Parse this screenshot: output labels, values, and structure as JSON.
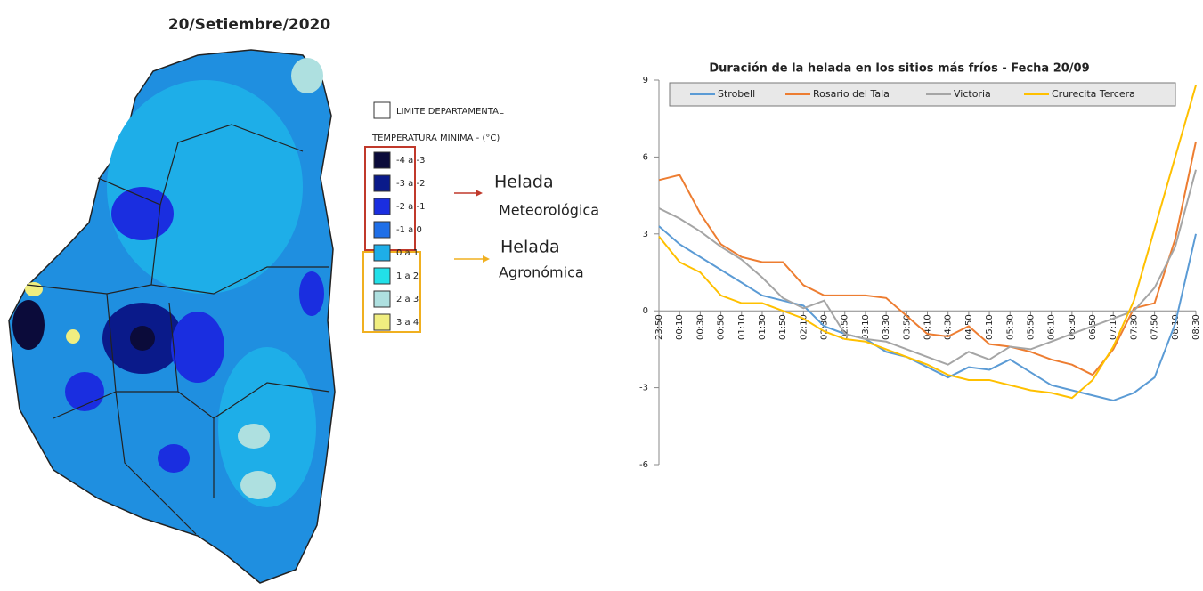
{
  "map": {
    "title": "20/Setiembre/2020",
    "legend_border": "LIMITE DEPARTAMENTAL",
    "legend_title": "TEMPERATURA MINIMA - (°C)",
    "classes": [
      {
        "label": "-4 a -3",
        "color": "#0b0b3a"
      },
      {
        "label": "-3 a -2",
        "color": "#0a1a8a"
      },
      {
        "label": "-2 a -1",
        "color": "#1a2ee0"
      },
      {
        "label": "-1 a 0",
        "color": "#1f6fe8"
      },
      {
        "label": "0 a 1",
        "color": "#1eaee8"
      },
      {
        "label": "1 a 2",
        "color": "#22e0e8"
      },
      {
        "label": "2 a 3",
        "color": "#aee0e0"
      },
      {
        "label": "3 a 4",
        "color": "#f0ee80"
      }
    ],
    "annotations": [
      {
        "lines": [
          "Helada",
          "Meteorológica"
        ]
      },
      {
        "lines": [
          "Helada",
          "Agronómica"
        ]
      }
    ]
  },
  "chart_data": {
    "type": "line",
    "title": "Duración de la helada en los sitios más fríos - Fecha 20/09",
    "categories": [
      "23:50",
      "00:10",
      "00:30",
      "00:50",
      "01:10",
      "01:30",
      "01:50",
      "02:10",
      "02:30",
      "02:50",
      "03:10",
      "03:30",
      "03:50",
      "04:10",
      "04:30",
      "04:50",
      "05:10",
      "05:30",
      "05:50",
      "06:10",
      "06:30",
      "06:50",
      "07:10",
      "07:30",
      "07:50",
      "08:10",
      "08:30"
    ],
    "series": [
      {
        "name": "Strobell",
        "color": "#5b9bd5",
        "values": [
          3.3,
          2.6,
          2.1,
          1.6,
          1.1,
          0.6,
          0.4,
          0.2,
          -0.6,
          -0.9,
          -1.1,
          -1.6,
          -1.8,
          -2.2,
          -2.6,
          -2.2,
          -2.3,
          -1.9,
          -2.4,
          -2.9,
          -3.1,
          -3.3,
          -3.5,
          -3.2,
          -2.6,
          -0.5,
          3.0
        ]
      },
      {
        "name": "Rosario del Tala",
        "color": "#ed7d31",
        "values": [
          5.1,
          5.3,
          3.8,
          2.6,
          2.1,
          1.9,
          1.9,
          1.0,
          0.6,
          0.6,
          0.6,
          0.5,
          -0.2,
          -0.9,
          -1.0,
          -0.6,
          -1.3,
          -1.4,
          -1.6,
          -1.9,
          -2.1,
          -2.5,
          -1.5,
          0.1,
          0.3,
          2.8,
          6.6
        ]
      },
      {
        "name": "Victoria",
        "color": "#a5a5a5",
        "values": [
          4.0,
          3.6,
          3.1,
          2.5,
          2.0,
          1.3,
          0.5,
          0.1,
          0.4,
          -0.9,
          -1.1,
          -1.2,
          -1.5,
          -1.8,
          -2.1,
          -1.6,
          -1.9,
          -1.4,
          -1.5,
          -1.2,
          -0.9,
          -0.6,
          -0.3,
          0.0,
          0.9,
          2.5,
          5.5
        ]
      },
      {
        "name": "Crurecita Tercera",
        "color": "#ffc000",
        "values": [
          2.9,
          1.9,
          1.5,
          0.6,
          0.3,
          0.3,
          0.0,
          -0.3,
          -0.8,
          -1.1,
          -1.2,
          -1.5,
          -1.8,
          -2.1,
          -2.5,
          -2.7,
          -2.7,
          -2.9,
          -3.1,
          -3.2,
          -3.4,
          -2.7,
          -1.4,
          0.4,
          3.2,
          6.0,
          8.8
        ]
      }
    ],
    "ylim": [
      -6,
      9
    ],
    "yticks": [
      -6,
      -3,
      0,
      3,
      6,
      9
    ],
    "legend": "top"
  }
}
